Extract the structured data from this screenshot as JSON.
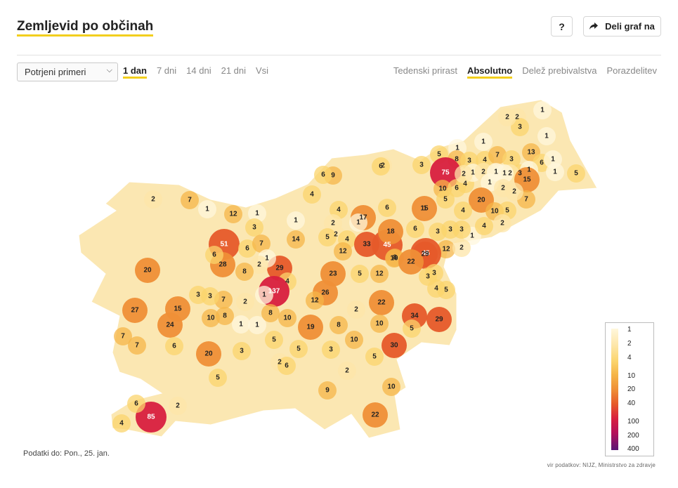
{
  "header": {
    "title": "Zemljevid po občinah",
    "help_label": "?",
    "share_label": "Deli graf na"
  },
  "controls": {
    "metric_select": "Potrjeni primeri",
    "period_tabs": [
      {
        "label": "1 dan",
        "active": true
      },
      {
        "label": "7 dni",
        "active": false
      },
      {
        "label": "14 dni",
        "active": false
      },
      {
        "label": "21 dni",
        "active": false
      },
      {
        "label": "Vsi",
        "active": false
      }
    ],
    "mode_tabs": [
      {
        "label": "Tedenski prirast",
        "active": false
      },
      {
        "label": "Absolutno",
        "active": true
      },
      {
        "label": "Delež prebivalstva",
        "active": false
      },
      {
        "label": "Porazdelitev",
        "active": false
      }
    ]
  },
  "legend": {
    "ticks": [
      "1",
      "2",
      "4",
      "10",
      "20",
      "40",
      "100",
      "200",
      "400"
    ]
  },
  "map_values": [
    "1",
    "2",
    "3",
    "2",
    "1",
    "2",
    "13",
    "1",
    "5",
    "8",
    "75",
    "3",
    "4",
    "7",
    "1",
    "3",
    "3",
    "6",
    "1",
    "1",
    "1",
    "9",
    "6",
    "2",
    "3",
    "6",
    "4",
    "1",
    "2",
    "1",
    "1",
    "4",
    "5",
    "2",
    "15",
    "10",
    "6",
    "2",
    "1",
    "2",
    "20",
    "10",
    "5",
    "4",
    "5",
    "1",
    "7",
    "2",
    "7",
    "1",
    "1",
    "12",
    "3",
    "6",
    "15",
    "4",
    "14",
    "17",
    "2",
    "1",
    "45",
    "18",
    "2",
    "5",
    "4",
    "1",
    "6",
    "3",
    "3",
    "1",
    "3",
    "4",
    "2",
    "33",
    "12",
    "51",
    "6",
    "7",
    "28",
    "29",
    "45",
    "2",
    "12",
    "20",
    "1",
    "2",
    "6",
    "8",
    "8",
    "29",
    "4",
    "23",
    "5",
    "12",
    "10",
    "3",
    "22",
    "3",
    "5",
    "137",
    "26",
    "7",
    "1",
    "12",
    "3",
    "27",
    "15",
    "10",
    "8",
    "2",
    "1",
    "3",
    "4",
    "22",
    "2",
    "34",
    "29",
    "5",
    "24",
    "1",
    "8",
    "10",
    "19",
    "8",
    "10",
    "5",
    "5",
    "20",
    "7",
    "7",
    "3",
    "6",
    "5",
    "30",
    "10",
    "3",
    "2",
    "5",
    "6",
    "2",
    "10",
    "9",
    "22",
    "85",
    "6",
    "2",
    "4"
  ],
  "footer": {
    "data_date": "Podatki do: Pon., 25. jan.",
    "source": "vir podatkov: NIJZ, Ministrstvo za zdravje"
  },
  "colors": {
    "accent": "#f2cf1d",
    "scale": [
      "#fff7dc",
      "#fde6a8",
      "#fbd46c",
      "#f5b548",
      "#ef8f37",
      "#e65a2a",
      "#d81f3f",
      "#b30f5a",
      "#5a1574"
    ]
  }
}
